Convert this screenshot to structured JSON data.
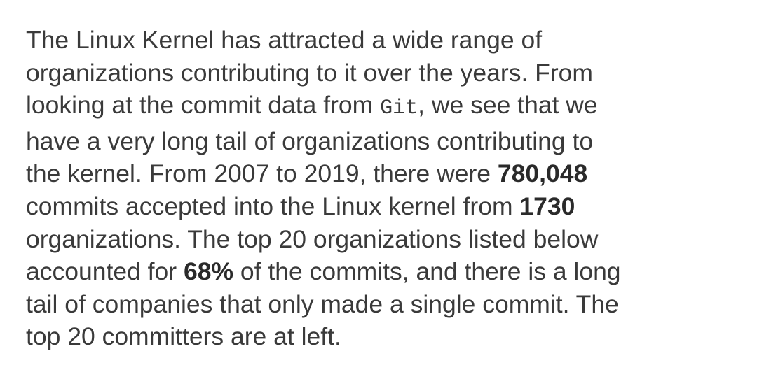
{
  "paragraph": {
    "lines": [
      [
        {
          "text": "The Linux Kernel has attracted a wide range of"
        }
      ],
      [
        {
          "text": "organizations contributing to it over the years. From"
        }
      ],
      [
        {
          "text": "looking at the commit data from "
        },
        {
          "code": "Git"
        },
        {
          "text": ", we see that we"
        }
      ],
      [
        {
          "text": "have a very long tail of organizations contributing to"
        }
      ],
      [
        {
          "text": "the kernel. From 2007 to 2019, there were "
        },
        {
          "bold": "780,048"
        }
      ],
      [
        {
          "text": "commits accepted into the Linux kernel from "
        },
        {
          "bold": "1730"
        }
      ],
      [
        {
          "text": "organizations. The top 20 organizations listed below"
        }
      ],
      [
        {
          "text": "accounted for "
        },
        {
          "bold": "68%"
        },
        {
          "text": " of the commits, and there is a long"
        }
      ],
      [
        {
          "text": "tail of companies that only made a single commit. The"
        }
      ],
      [
        {
          "text": "top 20 committers are at left."
        }
      ]
    ]
  }
}
